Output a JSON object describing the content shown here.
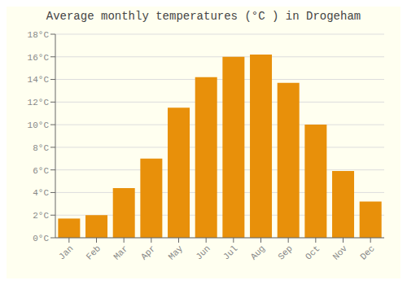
{
  "chart_data": {
    "type": "bar",
    "title": "Average monthly temperatures (°C ) in Drogeham",
    "categories": [
      "Jan",
      "Feb",
      "Mar",
      "Apr",
      "May",
      "Jun",
      "Jul",
      "Aug",
      "Sep",
      "Oct",
      "Nov",
      "Dec"
    ],
    "values": [
      1.7,
      2.0,
      4.4,
      7.0,
      11.5,
      14.2,
      16.0,
      16.2,
      13.7,
      10.0,
      5.9,
      3.2
    ],
    "color": "#E8900A",
    "ylim": [
      0,
      18
    ],
    "yticks": [
      {
        "value": 0,
        "label": "0°C"
      },
      {
        "value": 2,
        "label": "2°C"
      },
      {
        "value": 4,
        "label": "4°C"
      },
      {
        "value": 6,
        "label": "6°C"
      },
      {
        "value": 8,
        "label": "8°C"
      },
      {
        "value": 10,
        "label": "10°C"
      },
      {
        "value": 12,
        "label": "12°C"
      },
      {
        "value": 14,
        "label": "14°C"
      },
      {
        "value": 16,
        "label": "16°C"
      },
      {
        "value": 18,
        "label": "18°C"
      }
    ],
    "grid": true
  }
}
